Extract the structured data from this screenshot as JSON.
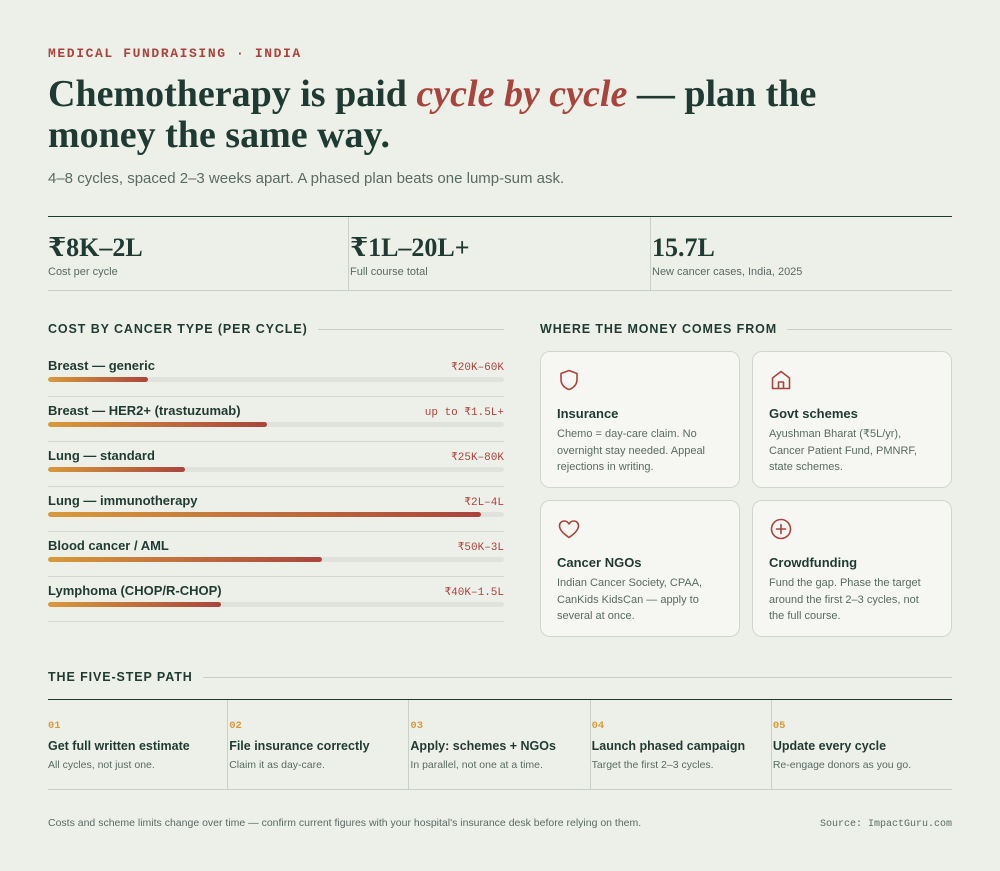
{
  "eyebrow": "MEDICAL FUNDRAISING · INDIA",
  "headline": {
    "before": "Chemotherapy is paid ",
    "emphasis": "cycle by cycle",
    "after": " — plan the money the same way."
  },
  "subhead": "4–8 cycles, spaced 2–3 weeks apart. A phased plan beats one lump-sum ask.",
  "stats": [
    {
      "value": "₹8K–2L",
      "label": "Cost per cycle"
    },
    {
      "value": "₹1L–20L+",
      "label": "Full course total"
    },
    {
      "value": "15.7L",
      "label": "New cancer cases, India, 2025"
    }
  ],
  "costs": {
    "title": "COST BY CANCER TYPE (PER CYCLE)",
    "rows": [
      {
        "name": "Breast — generic",
        "range": "₹20K–60K",
        "level": 0.22
      },
      {
        "name": "Breast — HER2+ (trastuzumab)",
        "range": "up to ₹1.5L+",
        "level": 0.48
      },
      {
        "name": "Lung — standard",
        "range": "₹25K–80K",
        "level": 0.3
      },
      {
        "name": "Lung — immunotherapy",
        "range": "₹2L–4L",
        "level": 0.95
      },
      {
        "name": "Blood cancer / AML",
        "range": "₹50K–3L",
        "level": 0.6
      },
      {
        "name": "Lymphoma (CHOP/R-CHOP)",
        "range": "₹40K–1.5L",
        "level": 0.38
      }
    ]
  },
  "sources": {
    "title": "WHERE THE MONEY COMES FROM",
    "cards": [
      {
        "icon": "shield-icon",
        "title": "Insurance",
        "text": "Chemo = day-care claim. No overnight stay needed. Appeal rejections in writing."
      },
      {
        "icon": "building-icon",
        "title": "Govt schemes",
        "text": "Ayushman Bharat (₹5L/yr), Cancer Patient Fund, PMNRF, state schemes."
      },
      {
        "icon": "heart-icon",
        "title": "Cancer NGOs",
        "text": "Indian Cancer Society, CPAA, CanKids KidsCan — apply to several at once."
      },
      {
        "icon": "plus-circle-icon",
        "title": "Crowdfunding",
        "text": "Fund the gap. Phase the target around the first 2–3 cycles, not the full course."
      }
    ]
  },
  "steps": {
    "title": "THE FIVE-STEP PATH",
    "items": [
      {
        "num": "01",
        "title": "Get full written estimate",
        "text": "All cycles, not just one."
      },
      {
        "num": "02",
        "title": "File insurance correctly",
        "text": "Claim it as day-care."
      },
      {
        "num": "03",
        "title": "Apply: schemes + NGOs",
        "text": "In parallel, not one at a time."
      },
      {
        "num": "04",
        "title": "Launch phased campaign",
        "text": "Target the first 2–3 cycles."
      },
      {
        "num": "05",
        "title": "Update every cycle",
        "text": "Re-engage donors as you go."
      }
    ]
  },
  "footnote": "Costs and scheme limits change over time — confirm current figures with your hospital's insurance desk before relying on them.",
  "source": "Source: ImpactGuru.com",
  "colors": {
    "accent": "#a9443d",
    "gold": "#d89a3a",
    "ink": "#1f3a33",
    "background": "#edf0e9"
  }
}
